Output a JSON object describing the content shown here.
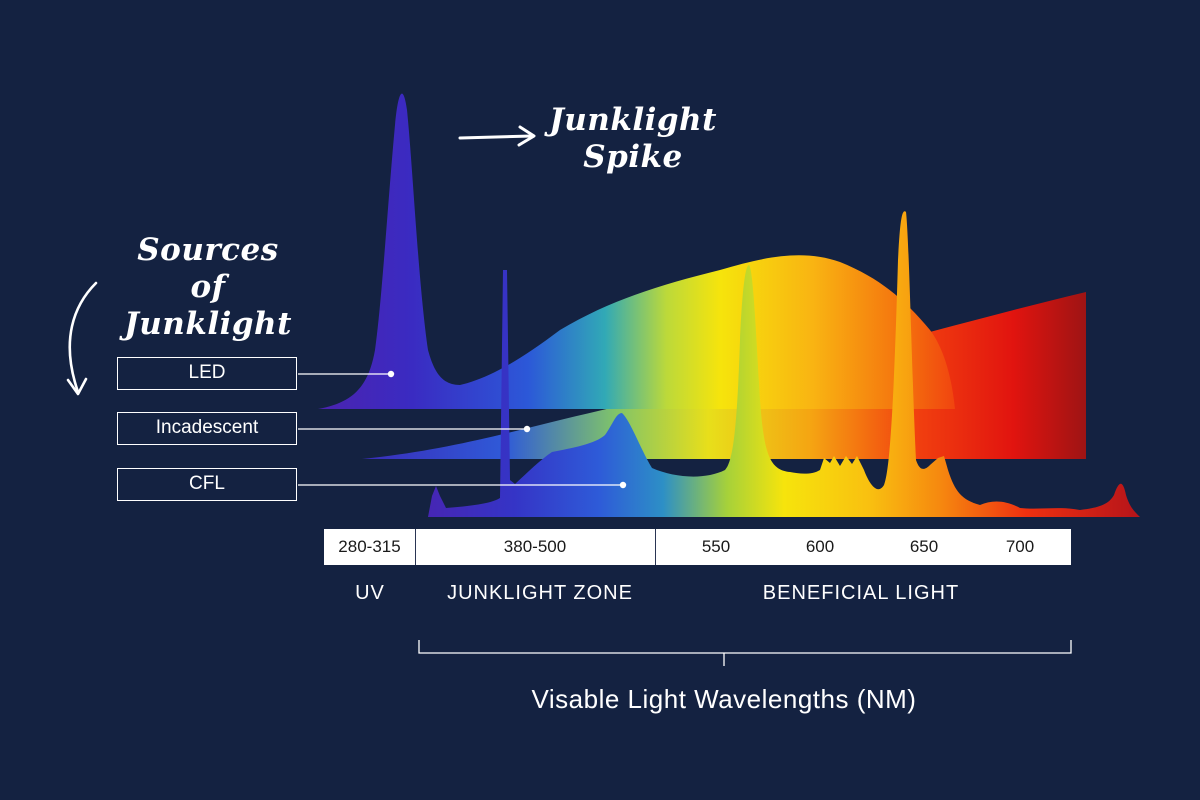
{
  "annotations": {
    "spike_caption_line1": "Junklight",
    "spike_caption_line2": "Spike",
    "sources_caption_line1": "Sources of",
    "sources_caption_line2": "Junklight"
  },
  "sources": {
    "led": "LED",
    "incandescent": "Incadescent",
    "cfl": "CFL"
  },
  "scale": {
    "uv_range": "280-315",
    "junk_range": "380-500",
    "ticks": [
      "550",
      "600",
      "650",
      "700"
    ]
  },
  "zones": {
    "uv": "UV",
    "junklight": "JUNKLIGHT ZONE",
    "beneficial": "BENEFICIAL LIGHT"
  },
  "footer": {
    "title": "Visable Light Wavelengths (NM)"
  },
  "colors": {
    "background": "#142241",
    "violet": "#3a2bb8",
    "blue": "#2f5ad8",
    "green": "#a8d63a",
    "yellow": "#f5e20c",
    "orange": "#f79a10",
    "red": "#f2170f",
    "deep_red": "#9e1414"
  }
}
